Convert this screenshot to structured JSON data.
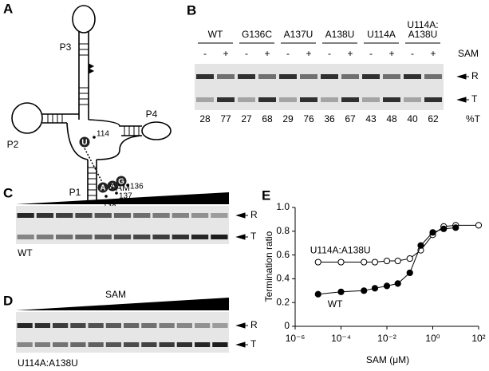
{
  "panel_a": {
    "letter": "A",
    "stems": [
      "P3",
      "P2",
      "P4",
      "P1"
    ],
    "nucleotides": [
      "U",
      "A",
      "A",
      "G"
    ],
    "positions": [
      "114",
      "136",
      "137",
      "138"
    ]
  },
  "panel_b": {
    "letter": "B",
    "ligand": "SAM",
    "treatments": [
      "-",
      "+"
    ],
    "bands": [
      "R",
      "T"
    ],
    "percent_label": "%T",
    "groups": [
      {
        "name": [
          "WT"
        ],
        "percent_t": [
          28,
          77
        ]
      },
      {
        "name": [
          "G136C"
        ],
        "percent_t": [
          27,
          68
        ]
      },
      {
        "name": [
          "A137U"
        ],
        "percent_t": [
          29,
          76
        ]
      },
      {
        "name": [
          "A138U"
        ],
        "percent_t": [
          36,
          67
        ]
      },
      {
        "name": [
          "U114A"
        ],
        "percent_t": [
          43,
          48
        ]
      },
      {
        "name": [
          "U114A:",
          "A138U"
        ],
        "percent_t": [
          40,
          62
        ]
      }
    ]
  },
  "panel_c": {
    "letter": "C",
    "ligand": "SAM",
    "bands": [
      "R",
      "T"
    ],
    "sample": "WT"
  },
  "panel_d": {
    "letter": "D",
    "ligand": "SAM",
    "bands": [
      "R",
      "T"
    ],
    "sample": "U114A:A138U"
  },
  "chart_data": {
    "type": "scatter",
    "letter": "E",
    "xlabel": "SAM (μM)",
    "ylabel": "Termination ratio",
    "xscale": "log",
    "xlim": [
      1e-06,
      100
    ],
    "ylim": [
      0,
      1
    ],
    "xticks": [
      {
        "value": 1e-06,
        "label": "10⁻⁶"
      },
      {
        "value": 0.0001,
        "label": "10⁻⁴"
      },
      {
        "value": 0.01,
        "label": "10⁻²"
      },
      {
        "value": 1,
        "label": "10⁰"
      },
      {
        "value": 100,
        "label": "10²"
      }
    ],
    "yticks": [
      0,
      0.2,
      0.4,
      0.6,
      0.8,
      {
        "value": 1,
        "label": "1.0"
      }
    ],
    "series": [
      {
        "name": "U114A:A138U",
        "color": "#ffffff",
        "x": [
          1e-05,
          0.0001,
          0.001,
          0.003,
          0.01,
          0.03,
          0.1,
          0.3,
          1,
          3,
          10,
          100
        ],
        "values": [
          0.54,
          0.54,
          0.54,
          0.54,
          0.55,
          0.55,
          0.57,
          0.64,
          0.77,
          0.84,
          0.85,
          0.85
        ]
      },
      {
        "name": "WT",
        "color": "#000000",
        "x": [
          1e-05,
          0.0001,
          0.001,
          0.003,
          0.01,
          0.03,
          0.1,
          0.3,
          1,
          3,
          10
        ],
        "values": [
          0.27,
          0.29,
          0.3,
          0.32,
          0.34,
          0.36,
          0.45,
          0.68,
          0.79,
          0.82,
          0.83
        ]
      }
    ]
  }
}
